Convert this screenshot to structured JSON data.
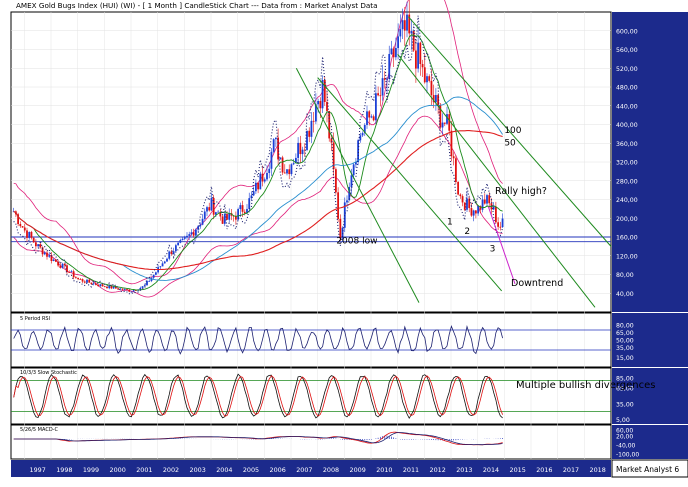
{
  "chart_data": {
    "type": "candlestick",
    "title": "AMEX Gold Bugs Index (HUI) (WI) -  [ 1 Month ] CandleStick Chart --- Data from : Market Analyst Data",
    "x_ticks": [
      "1997",
      "1998",
      "1999",
      "2000",
      "2001",
      "2002",
      "2003",
      "2004",
      "2005",
      "2006",
      "2007",
      "2008",
      "2009",
      "2010",
      "2011",
      "2012",
      "2013",
      "2014",
      "2015",
      "2016",
      "2017",
      "2018"
    ],
    "xlim": [
      1996.5,
      2019
    ],
    "watermark": "Market Analyst 6",
    "price_panel": {
      "ylim": [
        0,
        640
      ],
      "y_ticks": [
        "40,00",
        "80,00",
        "120,00",
        "160,00",
        "200,00",
        "240,00",
        "280,00",
        "320,00",
        "360,00",
        "400,00",
        "440,00",
        "480,00",
        "520,00",
        "560,00",
        "600,00"
      ],
      "y_tick_values": [
        40,
        80,
        120,
        160,
        200,
        240,
        280,
        320,
        360,
        400,
        440,
        480,
        520,
        560,
        600
      ],
      "close_series": [
        [
          1996.6,
          215
        ],
        [
          1997.0,
          175
        ],
        [
          1997.5,
          140
        ],
        [
          1998.0,
          115
        ],
        [
          1998.6,
          90
        ],
        [
          1999.0,
          70
        ],
        [
          1999.5,
          62
        ],
        [
          2000.0,
          55
        ],
        [
          2000.5,
          50
        ],
        [
          2001.0,
          45
        ],
        [
          2001.5,
          55
        ],
        [
          2002.0,
          90
        ],
        [
          2002.5,
          130
        ],
        [
          2003.0,
          150
        ],
        [
          2003.5,
          185
        ],
        [
          2004.0,
          230
        ],
        [
          2004.5,
          195
        ],
        [
          2005.0,
          210
        ],
        [
          2005.5,
          240
        ],
        [
          2006.0,
          300
        ],
        [
          2006.4,
          360
        ],
        [
          2006.8,
          300
        ],
        [
          2007.2,
          340
        ],
        [
          2007.6,
          380
        ],
        [
          2007.9,
          440
        ],
        [
          2008.2,
          480
        ],
        [
          2008.5,
          350
        ],
        [
          2008.85,
          160
        ],
        [
          2009.2,
          290
        ],
        [
          2009.6,
          380
        ],
        [
          2010.0,
          420
        ],
        [
          2010.5,
          480
        ],
        [
          2010.9,
          560
        ],
        [
          2011.3,
          600
        ],
        [
          2011.7,
          550
        ],
        [
          2012.0,
          500
        ],
        [
          2012.5,
          430
        ],
        [
          2012.9,
          390
        ],
        [
          2013.3,
          250
        ],
        [
          2013.7,
          220
        ],
        [
          2014.0,
          220
        ],
        [
          2014.3,
          240
        ],
        [
          2014.6,
          215
        ],
        [
          2014.8,
          180
        ],
        [
          2014.95,
          190
        ]
      ],
      "lows_annotations": [
        {
          "text": "2008 low",
          "x": 2008.85,
          "y": 155
        },
        {
          "text": "1",
          "x": 2013.0,
          "y": 195
        },
        {
          "text": "2",
          "x": 2013.65,
          "y": 175
        },
        {
          "text": "3",
          "x": 2014.6,
          "y": 138
        }
      ],
      "horizontal_levels": [
        150,
        160
      ],
      "moving_average_labels": [
        {
          "text": "100",
          "x": 2015.0,
          "y": 382
        },
        {
          "text": "50",
          "x": 2015.0,
          "y": 355
        }
      ],
      "notes": [
        {
          "text": "Rally high?",
          "x": 2014.65,
          "y": 252
        },
        {
          "text": "Downtrend",
          "x": 2015.25,
          "y": 56
        }
      ]
    },
    "rsi_panel": {
      "label": "5 Period RSI",
      "y_ticks": [
        "80,00",
        "65,00",
        "50,00",
        "35,00",
        "15,00"
      ],
      "y_tick_values": [
        80,
        65,
        50,
        35,
        15
      ],
      "levels": [
        70,
        30
      ]
    },
    "stochastic_panel": {
      "label": "10/3/3 Slow Stochastic",
      "y_ticks": [
        "85,00",
        "65,00",
        "35,00",
        "5,00"
      ],
      "y_tick_values": [
        85,
        65,
        35,
        5
      ],
      "levels": [
        80,
        20
      ],
      "note": "Multiple bullish divergences"
    },
    "macd_panel": {
      "label": "5/26/5 MACD-C",
      "y_ticks": [
        "60,00",
        "20,00",
        "-40,00",
        "-100,00"
      ],
      "y_tick_values": [
        60,
        20,
        -40,
        -100
      ]
    }
  }
}
